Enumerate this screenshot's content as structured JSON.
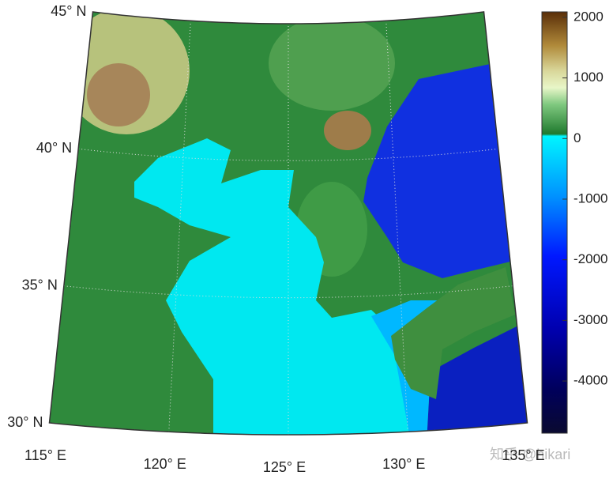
{
  "chart_data": {
    "type": "map",
    "lon_lim": [
      115,
      135
    ],
    "lat_lim": [
      30,
      45
    ],
    "lat_ticks": [
      {
        "value": 30,
        "label": "30° N"
      },
      {
        "value": 35,
        "label": "35° N"
      },
      {
        "value": 40,
        "label": "40° N"
      },
      {
        "value": 45,
        "label": "45° N"
      }
    ],
    "lon_ticks": [
      {
        "value": 115,
        "label": "115° E"
      },
      {
        "value": 120,
        "label": "120° E"
      },
      {
        "value": 125,
        "label": "125° E"
      },
      {
        "value": 130,
        "label": "130° E"
      },
      {
        "value": 135,
        "label": "135° E"
      }
    ],
    "colorbar_lim": [
      -4860,
      2090
    ],
    "colorbar_ticks": [
      2000,
      1000,
      0,
      -1000,
      -2000,
      -3000,
      -4000
    ],
    "watermark": "知乎 @hikari"
  }
}
